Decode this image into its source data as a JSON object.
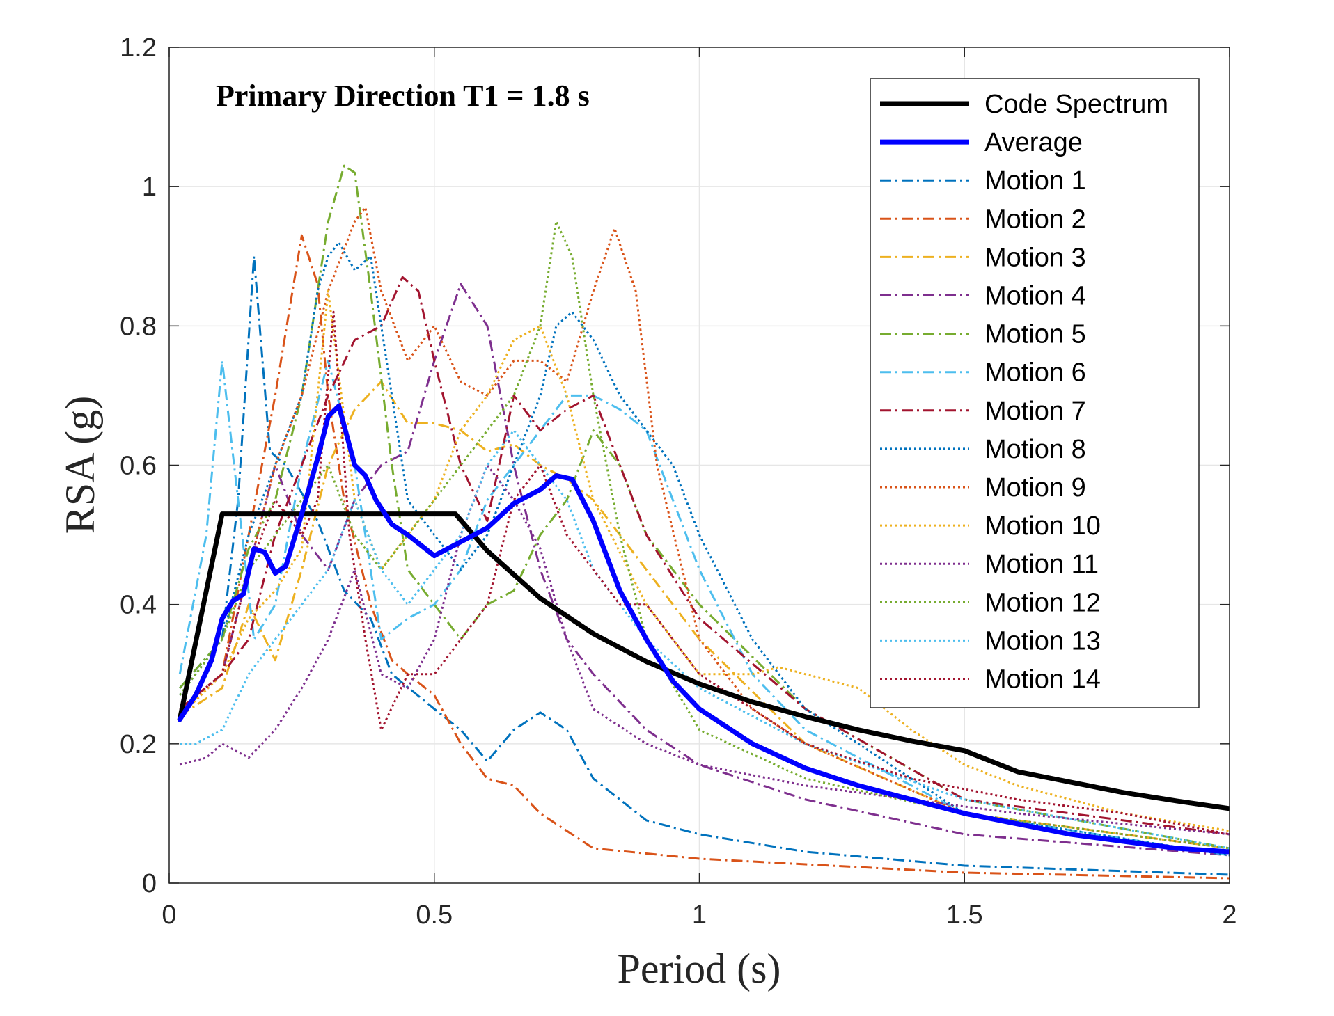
{
  "chart_data": {
    "type": "line",
    "title": "Primary Direction T1 = 1.8 s",
    "xlabel": "Period (s)",
    "ylabel": "RSA (g)",
    "xlim": [
      0,
      2
    ],
    "ylim": [
      0,
      1.2
    ],
    "xticks": [
      0,
      0.5,
      1,
      1.5,
      2
    ],
    "xtick_labels": [
      "0",
      "0.5",
      "1",
      "1.5",
      "2"
    ],
    "yticks": [
      0,
      0.2,
      0.4,
      0.6,
      0.8,
      1,
      1.2
    ],
    "ytick_labels": [
      "0",
      "0.2",
      "0.4",
      "0.6",
      "0.8",
      "1",
      "1.2"
    ],
    "grid": true,
    "legend_position": "top-right",
    "series": [
      {
        "name": "Code Spectrum",
        "color": "#000000",
        "style": "solid",
        "width": "thick",
        "x": [
          0.02,
          0.1,
          0.54,
          0.6,
          0.7,
          0.8,
          0.9,
          1.0,
          1.1,
          1.2,
          1.3,
          1.4,
          1.5,
          1.6,
          1.7,
          1.8,
          1.9,
          2.0
        ],
        "y": [
          0.235,
          0.53,
          0.53,
          0.477,
          0.409,
          0.358,
          0.318,
          0.286,
          0.26,
          0.239,
          0.22,
          0.204,
          0.19,
          0.16,
          0.145,
          0.13,
          0.118,
          0.107
        ]
      },
      {
        "name": "Average",
        "color": "#0000ff",
        "style": "solid",
        "width": "thick",
        "x": [
          0.02,
          0.05,
          0.08,
          0.1,
          0.12,
          0.14,
          0.16,
          0.18,
          0.2,
          0.22,
          0.25,
          0.28,
          0.3,
          0.32,
          0.35,
          0.37,
          0.39,
          0.42,
          0.45,
          0.5,
          0.55,
          0.6,
          0.65,
          0.7,
          0.73,
          0.76,
          0.8,
          0.85,
          0.9,
          0.95,
          1.0,
          1.05,
          1.1,
          1.2,
          1.3,
          1.4,
          1.5,
          1.6,
          1.7,
          1.8,
          1.9,
          2.0
        ],
        "y": [
          0.235,
          0.27,
          0.32,
          0.38,
          0.405,
          0.415,
          0.48,
          0.475,
          0.445,
          0.455,
          0.53,
          0.61,
          0.67,
          0.685,
          0.6,
          0.585,
          0.55,
          0.515,
          0.5,
          0.47,
          0.49,
          0.51,
          0.545,
          0.565,
          0.585,
          0.58,
          0.52,
          0.42,
          0.35,
          0.29,
          0.25,
          0.225,
          0.2,
          0.165,
          0.14,
          0.12,
          0.1,
          0.085,
          0.07,
          0.06,
          0.05,
          0.045
        ]
      },
      {
        "name": "Motion 1",
        "color": "#0072bd",
        "style": "dashdot",
        "x": [
          0.02,
          0.1,
          0.13,
          0.16,
          0.19,
          0.22,
          0.28,
          0.33,
          0.38,
          0.42,
          0.5,
          0.55,
          0.6,
          0.65,
          0.7,
          0.75,
          0.8,
          0.9,
          1.0,
          1.2,
          1.5,
          2.0
        ],
        "y": [
          0.28,
          0.35,
          0.55,
          0.9,
          0.62,
          0.6,
          0.52,
          0.42,
          0.38,
          0.3,
          0.25,
          0.22,
          0.175,
          0.22,
          0.245,
          0.22,
          0.15,
          0.09,
          0.07,
          0.045,
          0.025,
          0.012
        ]
      },
      {
        "name": "Motion 2",
        "color": "#d95319",
        "style": "dashdot",
        "x": [
          0.02,
          0.1,
          0.15,
          0.2,
          0.25,
          0.28,
          0.3,
          0.33,
          0.38,
          0.42,
          0.45,
          0.5,
          0.55,
          0.6,
          0.65,
          0.7,
          0.8,
          1.0,
          1.5,
          2.0
        ],
        "y": [
          0.25,
          0.3,
          0.5,
          0.7,
          0.93,
          0.86,
          0.7,
          0.55,
          0.4,
          0.32,
          0.3,
          0.27,
          0.2,
          0.15,
          0.14,
          0.1,
          0.05,
          0.035,
          0.015,
          0.007
        ]
      },
      {
        "name": "Motion 3",
        "color": "#edb120",
        "style": "dashdot",
        "x": [
          0.02,
          0.1,
          0.15,
          0.2,
          0.25,
          0.3,
          0.35,
          0.4,
          0.45,
          0.5,
          0.55,
          0.6,
          0.65,
          0.7,
          0.75,
          0.8,
          0.85,
          0.9,
          1.0,
          1.2,
          1.5,
          2.0
        ],
        "y": [
          0.24,
          0.28,
          0.4,
          0.32,
          0.45,
          0.6,
          0.68,
          0.72,
          0.66,
          0.66,
          0.65,
          0.62,
          0.63,
          0.6,
          0.58,
          0.55,
          0.5,
          0.45,
          0.35,
          0.2,
          0.1,
          0.05
        ]
      },
      {
        "name": "Motion 4",
        "color": "#7e2f8e",
        "style": "dashdot",
        "x": [
          0.02,
          0.1,
          0.15,
          0.2,
          0.25,
          0.3,
          0.35,
          0.4,
          0.45,
          0.5,
          0.55,
          0.6,
          0.65,
          0.7,
          0.75,
          0.8,
          0.9,
          1.0,
          1.2,
          1.5,
          2.0
        ],
        "y": [
          0.25,
          0.3,
          0.45,
          0.6,
          0.5,
          0.45,
          0.55,
          0.6,
          0.62,
          0.75,
          0.86,
          0.8,
          0.6,
          0.45,
          0.35,
          0.3,
          0.22,
          0.17,
          0.12,
          0.07,
          0.04
        ]
      },
      {
        "name": "Motion 5",
        "color": "#77ac30",
        "style": "dashdot",
        "x": [
          0.02,
          0.1,
          0.15,
          0.2,
          0.25,
          0.3,
          0.33,
          0.35,
          0.38,
          0.42,
          0.45,
          0.5,
          0.55,
          0.6,
          0.65,
          0.7,
          0.75,
          0.8,
          0.85,
          0.9,
          1.0,
          1.2,
          1.5,
          2.0
        ],
        "y": [
          0.28,
          0.35,
          0.48,
          0.55,
          0.7,
          0.95,
          1.03,
          1.02,
          0.85,
          0.6,
          0.45,
          0.4,
          0.35,
          0.4,
          0.42,
          0.5,
          0.55,
          0.65,
          0.6,
          0.5,
          0.4,
          0.25,
          0.12,
          0.05
        ]
      },
      {
        "name": "Motion 6",
        "color": "#4dbeee",
        "style": "dashdot",
        "x": [
          0.02,
          0.07,
          0.1,
          0.13,
          0.16,
          0.2,
          0.25,
          0.3,
          0.35,
          0.4,
          0.45,
          0.5,
          0.55,
          0.6,
          0.65,
          0.7,
          0.75,
          0.8,
          0.85,
          0.9,
          1.0,
          1.1,
          1.2,
          1.5,
          2.0
        ],
        "y": [
          0.3,
          0.5,
          0.75,
          0.55,
          0.35,
          0.4,
          0.6,
          0.75,
          0.6,
          0.35,
          0.38,
          0.4,
          0.45,
          0.55,
          0.6,
          0.65,
          0.7,
          0.7,
          0.68,
          0.65,
          0.45,
          0.3,
          0.22,
          0.1,
          0.04
        ]
      },
      {
        "name": "Motion 7",
        "color": "#a2142f",
        "style": "dashdot",
        "x": [
          0.02,
          0.1,
          0.15,
          0.2,
          0.25,
          0.3,
          0.35,
          0.4,
          0.44,
          0.47,
          0.5,
          0.55,
          0.6,
          0.65,
          0.7,
          0.75,
          0.8,
          0.85,
          0.9,
          1.0,
          1.2,
          1.5,
          2.0
        ],
        "y": [
          0.25,
          0.3,
          0.35,
          0.5,
          0.6,
          0.7,
          0.78,
          0.8,
          0.87,
          0.85,
          0.75,
          0.6,
          0.52,
          0.7,
          0.65,
          0.68,
          0.7,
          0.6,
          0.5,
          0.38,
          0.25,
          0.12,
          0.07
        ]
      },
      {
        "name": "Motion 8",
        "color": "#0072bd",
        "style": "dotted",
        "x": [
          0.02,
          0.1,
          0.15,
          0.2,
          0.25,
          0.28,
          0.3,
          0.32,
          0.35,
          0.38,
          0.42,
          0.45,
          0.5,
          0.55,
          0.6,
          0.65,
          0.7,
          0.73,
          0.76,
          0.8,
          0.85,
          0.9,
          0.95,
          1.0,
          1.1,
          1.2,
          1.5,
          2.0
        ],
        "y": [
          0.27,
          0.35,
          0.5,
          0.6,
          0.7,
          0.85,
          0.9,
          0.92,
          0.88,
          0.9,
          0.7,
          0.55,
          0.5,
          0.45,
          0.5,
          0.6,
          0.7,
          0.8,
          0.82,
          0.78,
          0.7,
          0.65,
          0.6,
          0.5,
          0.35,
          0.25,
          0.1,
          0.04
        ]
      },
      {
        "name": "Motion 9",
        "color": "#d95319",
        "style": "dotted",
        "x": [
          0.02,
          0.1,
          0.15,
          0.2,
          0.25,
          0.3,
          0.35,
          0.37,
          0.4,
          0.45,
          0.5,
          0.55,
          0.6,
          0.65,
          0.7,
          0.75,
          0.8,
          0.84,
          0.88,
          0.92,
          1.0,
          1.1,
          1.2,
          1.5,
          2.0
        ],
        "y": [
          0.24,
          0.3,
          0.45,
          0.6,
          0.7,
          0.85,
          0.95,
          0.97,
          0.85,
          0.75,
          0.8,
          0.72,
          0.7,
          0.75,
          0.75,
          0.72,
          0.85,
          0.94,
          0.85,
          0.6,
          0.35,
          0.25,
          0.2,
          0.1,
          0.05
        ]
      },
      {
        "name": "Motion 10",
        "color": "#edb120",
        "style": "dotted",
        "x": [
          0.02,
          0.1,
          0.15,
          0.2,
          0.25,
          0.3,
          0.35,
          0.4,
          0.45,
          0.5,
          0.55,
          0.6,
          0.65,
          0.7,
          0.75,
          0.8,
          0.9,
          1.0,
          1.1,
          1.15,
          1.2,
          1.3,
          1.4,
          1.5,
          1.6,
          1.7,
          1.8,
          2.0
        ],
        "y": [
          0.24,
          0.3,
          0.38,
          0.42,
          0.48,
          0.85,
          0.55,
          0.45,
          0.5,
          0.55,
          0.65,
          0.7,
          0.78,
          0.8,
          0.7,
          0.55,
          0.4,
          0.3,
          0.3,
          0.31,
          0.3,
          0.28,
          0.22,
          0.17,
          0.14,
          0.12,
          0.1,
          0.075
        ]
      },
      {
        "name": "Motion 11",
        "color": "#7e2f8e",
        "style": "dotted",
        "x": [
          0.02,
          0.07,
          0.1,
          0.15,
          0.2,
          0.25,
          0.3,
          0.35,
          0.4,
          0.45,
          0.5,
          0.55,
          0.6,
          0.65,
          0.7,
          0.75,
          0.8,
          0.9,
          1.0,
          1.2,
          1.4,
          1.6,
          1.8,
          2.0
        ],
        "y": [
          0.17,
          0.18,
          0.2,
          0.18,
          0.22,
          0.28,
          0.35,
          0.45,
          0.3,
          0.28,
          0.35,
          0.5,
          0.6,
          0.55,
          0.48,
          0.35,
          0.25,
          0.2,
          0.17,
          0.14,
          0.12,
          0.1,
          0.085,
          0.07
        ]
      },
      {
        "name": "Motion 12",
        "color": "#77ac30",
        "style": "dotted",
        "x": [
          0.02,
          0.1,
          0.15,
          0.2,
          0.25,
          0.3,
          0.35,
          0.4,
          0.45,
          0.5,
          0.55,
          0.6,
          0.65,
          0.7,
          0.73,
          0.76,
          0.8,
          0.85,
          0.9,
          1.0,
          1.2,
          1.5,
          2.0
        ],
        "y": [
          0.27,
          0.35,
          0.45,
          0.5,
          0.55,
          0.6,
          0.5,
          0.45,
          0.5,
          0.55,
          0.6,
          0.65,
          0.7,
          0.8,
          0.95,
          0.9,
          0.7,
          0.5,
          0.35,
          0.22,
          0.15,
          0.1,
          0.05
        ]
      },
      {
        "name": "Motion 13",
        "color": "#4dbeee",
        "style": "dotted",
        "x": [
          0.02,
          0.05,
          0.1,
          0.15,
          0.2,
          0.25,
          0.3,
          0.35,
          0.4,
          0.45,
          0.5,
          0.55,
          0.6,
          0.65,
          0.7,
          0.75,
          0.8,
          0.9,
          1.0,
          1.2,
          1.5,
          2.0
        ],
        "y": [
          0.2,
          0.2,
          0.22,
          0.3,
          0.35,
          0.4,
          0.45,
          0.55,
          0.45,
          0.4,
          0.45,
          0.5,
          0.6,
          0.65,
          0.6,
          0.55,
          0.45,
          0.35,
          0.28,
          0.2,
          0.12,
          0.05
        ]
      },
      {
        "name": "Motion 14",
        "color": "#a2142f",
        "style": "dotted",
        "x": [
          0.02,
          0.1,
          0.15,
          0.2,
          0.25,
          0.28,
          0.31,
          0.34,
          0.37,
          0.4,
          0.45,
          0.5,
          0.55,
          0.6,
          0.65,
          0.7,
          0.75,
          0.8,
          0.85,
          0.9,
          1.0,
          1.2,
          1.4,
          1.6,
          1.8,
          2.0
        ],
        "y": [
          0.25,
          0.3,
          0.45,
          0.55,
          0.5,
          0.55,
          0.82,
          0.5,
          0.35,
          0.22,
          0.3,
          0.3,
          0.35,
          0.4,
          0.55,
          0.6,
          0.5,
          0.45,
          0.4,
          0.4,
          0.3,
          0.2,
          0.15,
          0.12,
          0.1,
          0.07
        ]
      }
    ]
  }
}
